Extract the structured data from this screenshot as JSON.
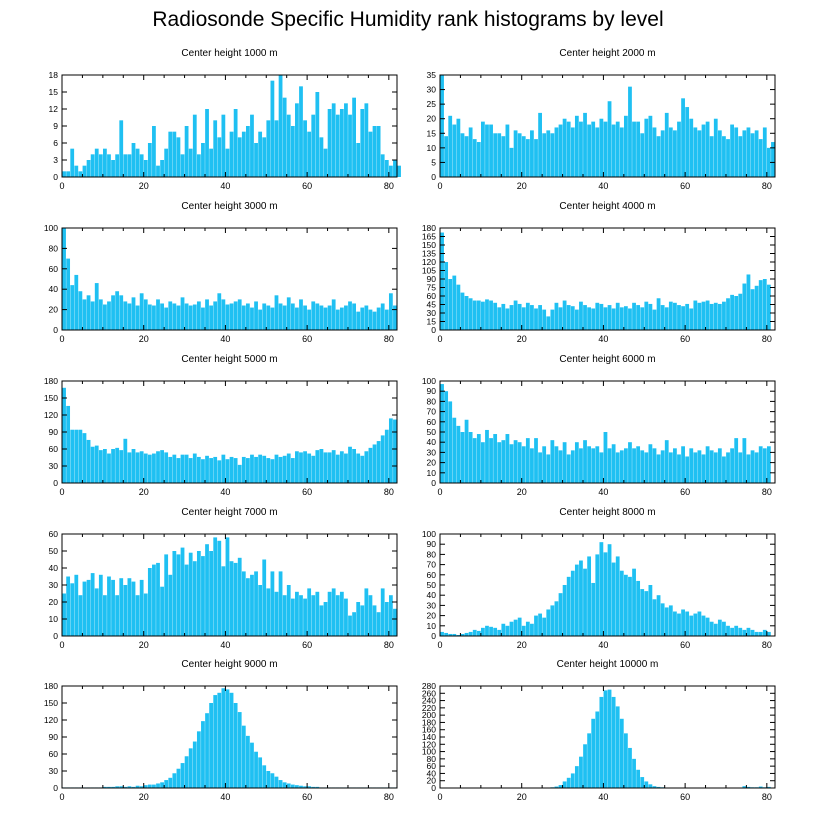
{
  "title": "Radiosonde Specific Humidity rank histograms by level",
  "colors": {
    "bar": "#1FC0F2",
    "axis": "#000000",
    "background": "#ffffff"
  },
  "chart_data": [
    {
      "type": "bar",
      "title": "Center height 1000 m",
      "xlabel": "",
      "ylabel": "",
      "xlim": [
        0,
        82
      ],
      "ylim": [
        0,
        18
      ],
      "xticks": [
        0,
        20,
        40,
        60,
        80
      ],
      "yticks": [
        0,
        3,
        6,
        9,
        12,
        15,
        18
      ],
      "values": [
        1,
        1,
        5,
        2,
        1,
        2,
        3,
        4,
        5,
        4,
        5,
        4,
        3,
        4,
        10,
        4,
        4,
        6,
        5,
        4,
        3,
        6,
        9,
        2,
        3,
        5,
        8,
        8,
        7,
        4,
        9,
        5,
        11,
        4,
        6,
        12,
        5,
        10,
        7,
        11,
        5,
        8,
        12,
        7,
        8,
        9,
        11,
        6,
        8,
        7,
        10,
        17,
        10,
        18,
        14,
        11,
        9,
        13,
        16,
        10,
        8,
        11,
        15,
        7,
        5,
        12,
        13,
        11,
        12,
        13,
        11,
        14,
        6,
        12,
        13,
        8,
        9,
        9,
        4,
        3,
        2,
        3,
        2
      ]
    },
    {
      "type": "bar",
      "title": "Center height 2000 m",
      "xlabel": "",
      "ylabel": "",
      "xlim": [
        0,
        82
      ],
      "ylim": [
        0,
        35
      ],
      "xticks": [
        0,
        20,
        40,
        60,
        80
      ],
      "yticks": [
        0,
        5,
        10,
        15,
        20,
        25,
        30,
        35
      ],
      "values": [
        35,
        14,
        21,
        18,
        20,
        15,
        14,
        17,
        13,
        12,
        19,
        18,
        18,
        15,
        15,
        14,
        18,
        10,
        16,
        15,
        14,
        13,
        16,
        13,
        22,
        15,
        16,
        15,
        17,
        18,
        20,
        19,
        17,
        21,
        19,
        22,
        18,
        19,
        17,
        20,
        19,
        26,
        18,
        19,
        17,
        21,
        31,
        19,
        19,
        15,
        20,
        21,
        17,
        14,
        16,
        22,
        17,
        16,
        19,
        27,
        24,
        20,
        17,
        16,
        18,
        19,
        14,
        20,
        16,
        14,
        13,
        18,
        17,
        14,
        16,
        17,
        15,
        16,
        13,
        17,
        10,
        12
      ]
    },
    {
      "type": "bar",
      "title": "Center height 3000 m",
      "xlabel": "",
      "ylabel": "",
      "xlim": [
        0,
        82
      ],
      "ylim": [
        0,
        100
      ],
      "xticks": [
        0,
        20,
        40,
        60,
        80
      ],
      "yticks": [
        0,
        20,
        40,
        60,
        80,
        100
      ],
      "values": [
        100,
        70,
        44,
        54,
        38,
        30,
        34,
        28,
        46,
        30,
        25,
        28,
        34,
        38,
        34,
        28,
        26,
        32,
        24,
        36,
        30,
        25,
        24,
        30,
        26,
        22,
        28,
        26,
        24,
        32,
        26,
        24,
        25,
        28,
        22,
        30,
        24,
        28,
        36,
        30,
        25,
        26,
        28,
        30,
        24,
        26,
        22,
        28,
        20,
        26,
        24,
        22,
        34,
        26,
        24,
        32,
        26,
        22,
        30,
        24,
        20,
        28,
        26,
        24,
        22,
        24,
        30,
        20,
        22,
        24,
        28,
        26,
        18,
        22,
        24,
        20,
        18,
        22,
        26,
        20,
        36,
        24
      ]
    },
    {
      "type": "bar",
      "title": "Center height 4000 m",
      "xlabel": "",
      "ylabel": "",
      "xlim": [
        0,
        82
      ],
      "ylim": [
        0,
        180
      ],
      "xticks": [
        0,
        20,
        40,
        60,
        80
      ],
      "yticks": [
        0,
        15,
        30,
        45,
        60,
        75,
        90,
        105,
        120,
        135,
        150,
        165,
        180
      ],
      "values": [
        172,
        120,
        90,
        96,
        80,
        66,
        60,
        56,
        52,
        52,
        50,
        54,
        52,
        48,
        40,
        46,
        38,
        44,
        52,
        46,
        40,
        48,
        44,
        38,
        44,
        36,
        24,
        36,
        48,
        40,
        52,
        44,
        42,
        36,
        50,
        44,
        40,
        38,
        48,
        46,
        40,
        44,
        38,
        48,
        40,
        42,
        38,
        48,
        44,
        40,
        50,
        46,
        36,
        56,
        44,
        40,
        50,
        48,
        44,
        42,
        46,
        38,
        52,
        48,
        50,
        52,
        46,
        48,
        46,
        50,
        56,
        62,
        60,
        64,
        82,
        98,
        72,
        78,
        88,
        90,
        80
      ]
    },
    {
      "type": "bar",
      "title": "Center height 5000 m",
      "xlabel": "",
      "ylabel": "",
      "xlim": [
        0,
        82
      ],
      "ylim": [
        0,
        180
      ],
      "xticks": [
        0,
        20,
        40,
        60,
        80
      ],
      "yticks": [
        0,
        30,
        60,
        90,
        120,
        150,
        180
      ],
      "values": [
        168,
        136,
        94,
        94,
        94,
        88,
        76,
        64,
        66,
        58,
        60,
        52,
        60,
        62,
        58,
        78,
        54,
        60,
        54,
        56,
        52,
        50,
        52,
        56,
        58,
        54,
        46,
        50,
        44,
        50,
        50,
        44,
        52,
        46,
        42,
        48,
        44,
        46,
        40,
        50,
        42,
        46,
        44,
        32,
        46,
        44,
        50,
        46,
        50,
        48,
        44,
        42,
        50,
        46,
        48,
        52,
        44,
        56,
        54,
        56,
        52,
        48,
        58,
        60,
        54,
        54,
        58,
        50,
        56,
        52,
        64,
        60,
        52,
        48,
        56,
        62,
        68,
        74,
        84,
        94,
        114,
        112
      ]
    },
    {
      "type": "bar",
      "title": "Center height 6000 m",
      "xlabel": "",
      "ylabel": "",
      "xlim": [
        0,
        82
      ],
      "ylim": [
        0,
        100
      ],
      "xticks": [
        0,
        20,
        40,
        60,
        80
      ],
      "yticks": [
        0,
        10,
        20,
        30,
        40,
        50,
        60,
        70,
        80,
        90,
        100
      ],
      "values": [
        97,
        90,
        80,
        64,
        56,
        50,
        62,
        50,
        44,
        48,
        40,
        52,
        44,
        48,
        40,
        42,
        48,
        38,
        42,
        40,
        36,
        44,
        34,
        44,
        30,
        36,
        28,
        42,
        36,
        32,
        40,
        28,
        32,
        40,
        34,
        42,
        36,
        34,
        36,
        30,
        50,
        34,
        38,
        30,
        32,
        34,
        40,
        34,
        36,
        32,
        30,
        38,
        34,
        28,
        32,
        42,
        30,
        34,
        28,
        36,
        26,
        34,
        30,
        32,
        28,
        36,
        32,
        30,
        34,
        26,
        30,
        34,
        44,
        30,
        44,
        28,
        32,
        30,
        36,
        34,
        36
      ]
    },
    {
      "type": "bar",
      "title": "Center height 7000 m",
      "xlabel": "",
      "ylabel": "",
      "xlim": [
        0,
        82
      ],
      "ylim": [
        0,
        60
      ],
      "xticks": [
        0,
        20,
        40,
        60,
        80
      ],
      "yticks": [
        0,
        10,
        20,
        30,
        40,
        50,
        60
      ],
      "values": [
        25,
        35,
        31,
        36,
        24,
        32,
        33,
        37,
        28,
        36,
        24,
        35,
        33,
        24,
        34,
        30,
        34,
        32,
        24,
        33,
        25,
        40,
        42,
        43,
        29,
        48,
        36,
        50,
        48,
        52,
        42,
        49,
        44,
        50,
        47,
        54,
        50,
        58,
        56,
        41,
        58,
        44,
        43,
        46,
        38,
        34,
        36,
        38,
        30,
        45,
        28,
        38,
        26,
        38,
        24,
        30,
        22,
        26,
        24,
        22,
        28,
        24,
        26,
        18,
        20,
        26,
        28,
        24,
        26,
        22,
        12,
        14,
        20,
        18,
        28,
        24,
        18,
        14,
        28,
        20,
        24,
        16
      ]
    },
    {
      "type": "bar",
      "title": "Center height 8000 m",
      "xlabel": "",
      "ylabel": "",
      "xlim": [
        0,
        82
      ],
      "ylim": [
        0,
        100
      ],
      "xticks": [
        0,
        20,
        40,
        60,
        80
      ],
      "yticks": [
        0,
        10,
        20,
        30,
        40,
        50,
        60,
        70,
        80,
        90,
        100
      ],
      "values": [
        4,
        3,
        2,
        2,
        1,
        2,
        3,
        4,
        6,
        5,
        8,
        10,
        9,
        8,
        6,
        12,
        10,
        14,
        16,
        18,
        10,
        14,
        12,
        20,
        22,
        18,
        26,
        30,
        34,
        42,
        50,
        58,
        64,
        70,
        74,
        66,
        78,
        52,
        80,
        92,
        82,
        90,
        72,
        78,
        64,
        60,
        58,
        66,
        54,
        46,
        44,
        50,
        36,
        40,
        32,
        28,
        30,
        24,
        22,
        26,
        24,
        20,
        22,
        24,
        20,
        18,
        14,
        12,
        16,
        14,
        10,
        8,
        10,
        8,
        6,
        8,
        6,
        4,
        4,
        6,
        4
      ]
    },
    {
      "type": "bar",
      "title": "Center height 9000 m",
      "xlabel": "",
      "ylabel": "",
      "xlim": [
        0,
        82
      ],
      "ylim": [
        0,
        180
      ],
      "xticks": [
        0,
        20,
        40,
        60,
        80
      ],
      "yticks": [
        0,
        30,
        60,
        90,
        120,
        150,
        180
      ],
      "values": [
        1,
        1,
        1,
        1,
        1,
        1,
        1,
        1,
        1,
        1,
        2,
        2,
        2,
        3,
        3,
        2,
        3,
        2,
        4,
        3,
        5,
        6,
        6,
        8,
        10,
        14,
        18,
        26,
        34,
        44,
        56,
        70,
        82,
        100,
        118,
        132,
        150,
        164,
        168,
        176,
        174,
        168,
        150,
        134,
        110,
        92,
        80,
        64,
        54,
        40,
        30,
        26,
        20,
        14,
        10,
        8,
        6,
        5,
        4,
        3,
        3,
        2,
        2,
        1,
        1,
        1,
        1,
        1,
        1,
        1,
        1,
        1,
        1,
        1,
        1,
        1,
        1,
        1,
        1,
        1,
        1,
        1
      ]
    },
    {
      "type": "bar",
      "title": "Center height 10000 m",
      "xlabel": "",
      "ylabel": "",
      "xlim": [
        0,
        82
      ],
      "ylim": [
        0,
        280
      ],
      "xticks": [
        0,
        20,
        40,
        60,
        80
      ],
      "yticks": [
        0,
        20,
        40,
        60,
        80,
        100,
        120,
        140,
        160,
        180,
        200,
        220,
        240,
        260,
        280
      ],
      "values": [
        0,
        0,
        0,
        0,
        0,
        0,
        0,
        0,
        0,
        0,
        0,
        0,
        0,
        0,
        0,
        0,
        0,
        0,
        0,
        0,
        0,
        0,
        0,
        0,
        0,
        0,
        1,
        2,
        4,
        8,
        18,
        28,
        40,
        60,
        86,
        120,
        150,
        190,
        210,
        250,
        268,
        270,
        250,
        224,
        190,
        150,
        110,
        80,
        50,
        30,
        18,
        10,
        5,
        3,
        2,
        1,
        1,
        1,
        0,
        0,
        0,
        0,
        0,
        0,
        0,
        0,
        0,
        0,
        0,
        0,
        0,
        0,
        0,
        0,
        5,
        3,
        2,
        2,
        4,
        2,
        3
      ]
    }
  ]
}
